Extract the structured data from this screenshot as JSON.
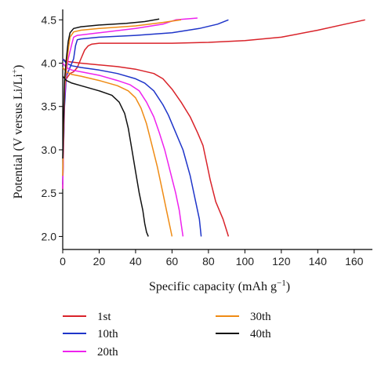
{
  "chart_data": {
    "type": "line",
    "title": "",
    "xlabel_main": "Specific capacity (mAh g",
    "xlabel_sup": "−1",
    "xlabel_end": ")",
    "ylabel_main": "Potential (V versus Li/Li",
    "ylabel_sup": "+",
    "ylabel_end": ")",
    "xlim": [
      0,
      170
    ],
    "ylim": [
      1.85,
      4.62
    ],
    "xticks": [
      "0",
      "20",
      "40",
      "60",
      "80",
      "100",
      "120",
      "140",
      "160"
    ],
    "yticks": [
      "2.0",
      "2.5",
      "3.0",
      "3.5",
      "4.0",
      "4.5"
    ],
    "grid": false,
    "legend_position": "bottom",
    "series": [
      {
        "name": "1st",
        "color": "#d9232a",
        "charge": [
          [
            0,
            2.55
          ],
          [
            0.5,
            3.4
          ],
          [
            1,
            3.7
          ],
          [
            2,
            3.82
          ],
          [
            4,
            3.88
          ],
          [
            6,
            3.9
          ],
          [
            8,
            3.95
          ],
          [
            10,
            4.05
          ],
          [
            12,
            4.15
          ],
          [
            14,
            4.2
          ],
          [
            16,
            4.22
          ],
          [
            20,
            4.23
          ],
          [
            40,
            4.23
          ],
          [
            60,
            4.23
          ],
          [
            80,
            4.24
          ],
          [
            100,
            4.26
          ],
          [
            120,
            4.3
          ],
          [
            140,
            4.38
          ],
          [
            155,
            4.45
          ],
          [
            166,
            4.5
          ]
        ],
        "discharge": [
          [
            0,
            4.05
          ],
          [
            2,
            4.02
          ],
          [
            10,
            4.0
          ],
          [
            20,
            3.98
          ],
          [
            30,
            3.96
          ],
          [
            40,
            3.93
          ],
          [
            50,
            3.88
          ],
          [
            55,
            3.82
          ],
          [
            60,
            3.7
          ],
          [
            65,
            3.55
          ],
          [
            70,
            3.38
          ],
          [
            74,
            3.2
          ],
          [
            77,
            3.05
          ],
          [
            79,
            2.85
          ],
          [
            81,
            2.65
          ],
          [
            84,
            2.4
          ],
          [
            88,
            2.2
          ],
          [
            91,
            2.0
          ]
        ]
      },
      {
        "name": "10th",
        "color": "#1f35c9",
        "charge": [
          [
            0,
            2.6
          ],
          [
            1,
            3.5
          ],
          [
            2,
            3.85
          ],
          [
            4,
            3.95
          ],
          [
            6,
            4.05
          ],
          [
            7,
            4.2
          ],
          [
            8,
            4.27
          ],
          [
            10,
            4.28
          ],
          [
            20,
            4.3
          ],
          [
            40,
            4.32
          ],
          [
            60,
            4.35
          ],
          [
            75,
            4.4
          ],
          [
            85,
            4.45
          ],
          [
            91,
            4.5
          ]
        ],
        "discharge": [
          [
            0,
            4.05
          ],
          [
            2,
            4.0
          ],
          [
            5,
            3.97
          ],
          [
            10,
            3.95
          ],
          [
            20,
            3.92
          ],
          [
            30,
            3.88
          ],
          [
            40,
            3.82
          ],
          [
            45,
            3.77
          ],
          [
            50,
            3.68
          ],
          [
            55,
            3.52
          ],
          [
            58,
            3.4
          ],
          [
            62,
            3.2
          ],
          [
            66,
            3.0
          ],
          [
            70,
            2.7
          ],
          [
            73,
            2.4
          ],
          [
            75,
            2.2
          ],
          [
            76,
            2.0
          ]
        ]
      },
      {
        "name": "20th",
        "color": "#ee22ee",
        "charge": [
          [
            0,
            2.55
          ],
          [
            1,
            3.6
          ],
          [
            2,
            3.9
          ],
          [
            3,
            4.05
          ],
          [
            5,
            4.22
          ],
          [
            6,
            4.3
          ],
          [
            8,
            4.32
          ],
          [
            20,
            4.35
          ],
          [
            40,
            4.4
          ],
          [
            55,
            4.45
          ],
          [
            62,
            4.5
          ],
          [
            74,
            4.52
          ]
        ],
        "discharge": [
          [
            0,
            4.0
          ],
          [
            2,
            3.95
          ],
          [
            5,
            3.92
          ],
          [
            10,
            3.9
          ],
          [
            20,
            3.86
          ],
          [
            30,
            3.8
          ],
          [
            37,
            3.75
          ],
          [
            42,
            3.68
          ],
          [
            46,
            3.55
          ],
          [
            50,
            3.38
          ],
          [
            53,
            3.2
          ],
          [
            56,
            3.0
          ],
          [
            59,
            2.75
          ],
          [
            62,
            2.5
          ],
          [
            64,
            2.3
          ],
          [
            65,
            2.15
          ],
          [
            66,
            2.0
          ]
        ]
      },
      {
        "name": "30th",
        "color": "#ef8b14",
        "charge": [
          [
            0,
            2.7
          ],
          [
            1,
            3.7
          ],
          [
            2,
            3.95
          ],
          [
            3,
            4.15
          ],
          [
            4,
            4.3
          ],
          [
            6,
            4.36
          ],
          [
            10,
            4.38
          ],
          [
            20,
            4.4
          ],
          [
            40,
            4.43
          ],
          [
            55,
            4.47
          ],
          [
            65,
            4.5
          ]
        ],
        "discharge": [
          [
            0,
            3.95
          ],
          [
            2,
            3.9
          ],
          [
            5,
            3.87
          ],
          [
            10,
            3.85
          ],
          [
            20,
            3.8
          ],
          [
            30,
            3.74
          ],
          [
            36,
            3.68
          ],
          [
            40,
            3.6
          ],
          [
            43,
            3.48
          ],
          [
            46,
            3.3
          ],
          [
            49,
            3.05
          ],
          [
            52,
            2.8
          ],
          [
            55,
            2.5
          ],
          [
            57,
            2.3
          ],
          [
            59,
            2.1
          ],
          [
            60,
            2.0
          ]
        ]
      },
      {
        "name": "40th",
        "color": "#111111",
        "charge": [
          [
            0,
            2.9
          ],
          [
            1,
            3.8
          ],
          [
            2,
            4.05
          ],
          [
            3,
            4.25
          ],
          [
            4,
            4.35
          ],
          [
            6,
            4.4
          ],
          [
            10,
            4.42
          ],
          [
            20,
            4.44
          ],
          [
            35,
            4.46
          ],
          [
            45,
            4.48
          ],
          [
            53,
            4.51
          ]
        ],
        "discharge": [
          [
            0,
            3.85
          ],
          [
            2,
            3.8
          ],
          [
            5,
            3.77
          ],
          [
            10,
            3.74
          ],
          [
            20,
            3.68
          ],
          [
            27,
            3.63
          ],
          [
            31,
            3.55
          ],
          [
            34,
            3.42
          ],
          [
            36,
            3.25
          ],
          [
            38,
            3.0
          ],
          [
            40,
            2.75
          ],
          [
            42,
            2.5
          ],
          [
            44,
            2.3
          ],
          [
            45,
            2.15
          ],
          [
            46,
            2.05
          ],
          [
            47,
            2.0
          ]
        ]
      }
    ]
  }
}
